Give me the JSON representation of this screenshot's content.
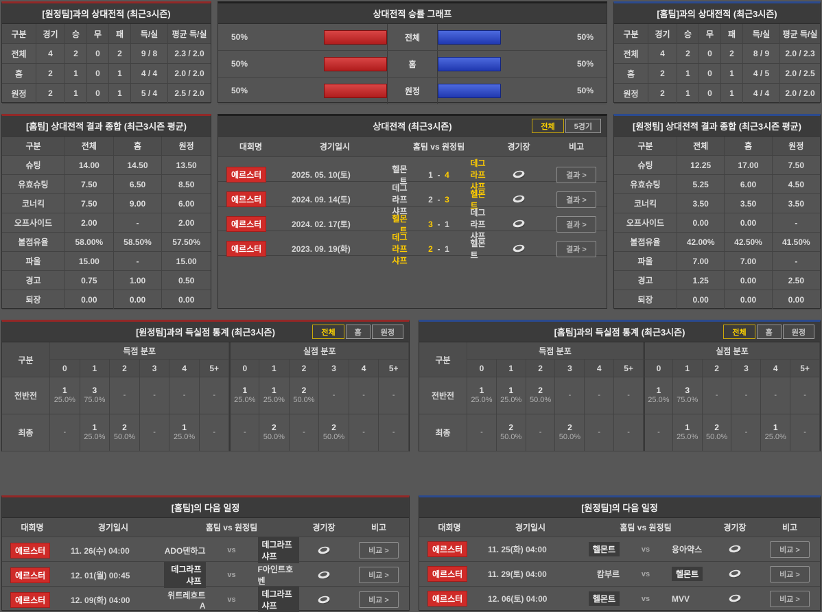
{
  "h2h_vs_away": {
    "title": "[원정팀]과의 상대전적 (최근3시즌)",
    "headers": [
      "구분",
      "경기",
      "승",
      "무",
      "패",
      "득/실",
      "평균 득/실"
    ],
    "rows": [
      [
        "전체",
        "4",
        "2",
        "0",
        "2",
        "9 / 8",
        "2.3 / 2.0"
      ],
      [
        "홈",
        "2",
        "1",
        "0",
        "1",
        "4 / 4",
        "2.0 / 2.0"
      ],
      [
        "원정",
        "2",
        "1",
        "0",
        "1",
        "5 / 4",
        "2.5 / 2.0"
      ]
    ]
  },
  "winrate_graph": {
    "title": "상대전적 승률 그래프",
    "rows": [
      {
        "label": "전체",
        "left_pct": "50%",
        "right_pct": "50%"
      },
      {
        "label": "홈",
        "left_pct": "50%",
        "right_pct": "50%"
      },
      {
        "label": "원정",
        "left_pct": "50%",
        "right_pct": "50%"
      }
    ],
    "bar_red": "#c22b2b",
    "bar_blue": "#2e4fc4"
  },
  "h2h_vs_home": {
    "title": "[홈팀]과의 상대전적 (최근3시즌)",
    "headers": [
      "구분",
      "경기",
      "승",
      "무",
      "패",
      "득/실",
      "평균 득/실"
    ],
    "rows": [
      [
        "전체",
        "4",
        "2",
        "0",
        "2",
        "8 / 9",
        "2.0 / 2.3"
      ],
      [
        "홈",
        "2",
        "1",
        "0",
        "1",
        "4 / 5",
        "2.0 / 2.5"
      ],
      [
        "원정",
        "2",
        "1",
        "0",
        "1",
        "4 / 4",
        "2.0 / 2.0"
      ]
    ]
  },
  "summary_home": {
    "title": "[홈팀] 상대전적 결과 종합 (최근3시즌 평균)",
    "headers": [
      "구분",
      "전체",
      "홈",
      "원정"
    ],
    "rows": [
      [
        "슈팅",
        "14.00",
        "14.50",
        "13.50"
      ],
      [
        "유효슈팅",
        "7.50",
        "6.50",
        "8.50"
      ],
      [
        "코너킥",
        "7.50",
        "9.00",
        "6.00"
      ],
      [
        "오프사이드",
        "2.00",
        "-",
        "2.00"
      ],
      [
        "볼점유율",
        "58.00%",
        "58.50%",
        "57.50%"
      ],
      [
        "파울",
        "15.00",
        "-",
        "15.00"
      ],
      [
        "경고",
        "0.75",
        "1.00",
        "0.50"
      ],
      [
        "퇴장",
        "0.00",
        "0.00",
        "0.00"
      ]
    ]
  },
  "h2h_matches": {
    "title": "상대전적 (최근3시즌)",
    "tabs": [
      {
        "label": "전체",
        "active": true
      },
      {
        "label": "5경기",
        "active": false
      }
    ],
    "headers": [
      "대회명",
      "경기일시",
      "홈팀  vs  원정팀",
      "경기장",
      "비고"
    ],
    "league": "에르스터",
    "button_label": "결과 >",
    "rows": [
      {
        "date": "2025. 05. 10(토)",
        "home": "헬몬트",
        "home_score": "1",
        "away_score": "4",
        "away": "데그라프샤프",
        "winner": "away"
      },
      {
        "date": "2024. 09. 14(토)",
        "home": "데그라프샤프",
        "home_score": "2",
        "away_score": "3",
        "away": "헬몬트",
        "winner": "away"
      },
      {
        "date": "2024. 02. 17(토)",
        "home": "헬몬트",
        "home_score": "3",
        "away_score": "1",
        "away": "데그라프샤프",
        "winner": "home"
      },
      {
        "date": "2023. 09. 19(화)",
        "home": "데그라프샤프",
        "home_score": "2",
        "away_score": "1",
        "away": "헬몬트",
        "winner": "home"
      }
    ]
  },
  "summary_away": {
    "title": "[원정팀] 상대전적 결과 종합 (최근3시즌 평균)",
    "headers": [
      "구분",
      "전체",
      "홈",
      "원정"
    ],
    "rows": [
      [
        "슈팅",
        "12.25",
        "17.00",
        "7.50"
      ],
      [
        "유효슈팅",
        "5.25",
        "6.00",
        "4.50"
      ],
      [
        "코너킥",
        "3.50",
        "3.50",
        "3.50"
      ],
      [
        "오프사이드",
        "0.00",
        "0.00",
        "-"
      ],
      [
        "볼점유율",
        "42.00%",
        "42.50%",
        "41.50%"
      ],
      [
        "파울",
        "7.00",
        "7.00",
        "-"
      ],
      [
        "경고",
        "1.25",
        "0.00",
        "2.50"
      ],
      [
        "퇴장",
        "0.00",
        "0.00",
        "0.00"
      ]
    ]
  },
  "goal_stats_vs_away": {
    "title": "[원정팀]과의 득실점 통계 (최근3시즌)",
    "tabs": [
      {
        "label": "전체",
        "active": true
      },
      {
        "label": "홈",
        "active": false
      },
      {
        "label": "원정",
        "active": false
      }
    ],
    "row_header": "구분",
    "group_headers": [
      "득점 분포",
      "실점 분포"
    ],
    "cols": [
      "0",
      "1",
      "2",
      "3",
      "4",
      "5+"
    ],
    "rows": [
      {
        "label": "전반전",
        "scored": [
          {
            "n": "1",
            "p": "25.0%"
          },
          {
            "n": "3",
            "p": "75.0%"
          },
          null,
          null,
          null,
          null
        ],
        "conceded": [
          {
            "n": "1",
            "p": "25.0%"
          },
          {
            "n": "1",
            "p": "25.0%"
          },
          {
            "n": "2",
            "p": "50.0%"
          },
          null,
          null,
          null
        ]
      },
      {
        "label": "최종",
        "scored": [
          null,
          {
            "n": "1",
            "p": "25.0%"
          },
          {
            "n": "2",
            "p": "50.0%"
          },
          null,
          {
            "n": "1",
            "p": "25.0%"
          },
          null
        ],
        "conceded": [
          null,
          {
            "n": "2",
            "p": "50.0%"
          },
          null,
          {
            "n": "2",
            "p": "50.0%"
          },
          null,
          null
        ]
      }
    ]
  },
  "goal_stats_vs_home": {
    "title": "[홈팀]과의 득실점 통계 (최근3시즌)",
    "tabs": [
      {
        "label": "전체",
        "active": true
      },
      {
        "label": "홈",
        "active": false
      },
      {
        "label": "원정",
        "active": false
      }
    ],
    "row_header": "구분",
    "group_headers": [
      "득점 분포",
      "실점 분포"
    ],
    "cols": [
      "0",
      "1",
      "2",
      "3",
      "4",
      "5+"
    ],
    "rows": [
      {
        "label": "전반전",
        "scored": [
          {
            "n": "1",
            "p": "25.0%"
          },
          {
            "n": "1",
            "p": "25.0%"
          },
          {
            "n": "2",
            "p": "50.0%"
          },
          null,
          null,
          null
        ],
        "conceded": [
          {
            "n": "1",
            "p": "25.0%"
          },
          {
            "n": "3",
            "p": "75.0%"
          },
          null,
          null,
          null,
          null
        ]
      },
      {
        "label": "최종",
        "scored": [
          null,
          {
            "n": "2",
            "p": "50.0%"
          },
          null,
          {
            "n": "2",
            "p": "50.0%"
          },
          null,
          null
        ],
        "conceded": [
          null,
          {
            "n": "1",
            "p": "25.0%"
          },
          {
            "n": "2",
            "p": "50.0%"
          },
          null,
          {
            "n": "1",
            "p": "25.0%"
          },
          null
        ]
      }
    ]
  },
  "schedule_home": {
    "title": "[홈팀]의 다음 일정",
    "headers": [
      "대회명",
      "경기일시",
      "홈팀  vs  원정팀",
      "경기장",
      "비고"
    ],
    "league": "에르스터",
    "button_label": "비교 >",
    "vs_label": "vs",
    "rows": [
      {
        "datetime": "11. 26(수) 04:00",
        "home": "ADO덴하그",
        "away": "데그라프샤프",
        "highlight": "away"
      },
      {
        "datetime": "12. 01(월) 00:45",
        "home": "데그라프샤프",
        "away": "F아인트호벤",
        "highlight": "home"
      },
      {
        "datetime": "12. 09(화) 04:00",
        "home": "위트레흐트A",
        "away": "데그라프샤프",
        "highlight": "away"
      }
    ]
  },
  "schedule_away": {
    "title": "[원정팀]의 다음 일정",
    "headers": [
      "대회명",
      "경기일시",
      "홈팀  vs  원정팀",
      "경기장",
      "비고"
    ],
    "league": "에르스터",
    "button_label": "비교 >",
    "vs_label": "vs",
    "rows": [
      {
        "datetime": "11. 25(화) 04:00",
        "home": "헬몬트",
        "away": "용아약스",
        "highlight": "home"
      },
      {
        "datetime": "11. 29(토) 04:00",
        "home": "캄부르",
        "away": "헬몬트",
        "highlight": "away"
      },
      {
        "datetime": "12. 06(토) 04:00",
        "home": "헬몬트",
        "away": "MVV",
        "highlight": "home"
      }
    ]
  }
}
